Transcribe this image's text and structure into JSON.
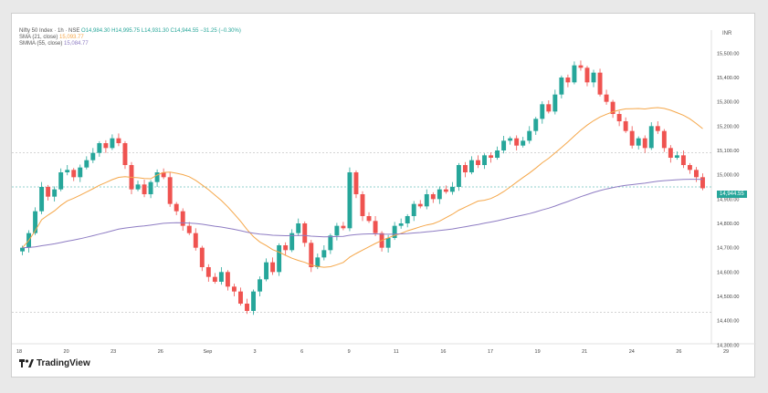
{
  "header": {
    "top_name": "",
    "corner_label": "INR"
  },
  "legend": {
    "title": "Nifty 50 Index · 1h · NSE",
    "ohlc": "O14,984.30 H14,995.75 L14,931.30 C14,944.55 −31.25 (−0.30%)",
    "sma_label": "SMA (21, close)",
    "sma_value": "15,093.77",
    "smma_label": "SMMA (55, close)",
    "smma_value": "15,084.77"
  },
  "logo": {
    "text": "TradingView"
  },
  "colors": {
    "up": "#26a69a",
    "down": "#ef5350",
    "sma": "#f5a74a",
    "smma": "#8e7cc3",
    "grid": "#eeeeee"
  },
  "chart_data": {
    "type": "candlestick",
    "title": "Nifty 50 Index · 1h · NSE",
    "xlabel": "",
    "ylabel": "",
    "ylim": [
      14350,
      15550
    ],
    "y_ticks": [
      "15,500.00",
      "15,400.00",
      "15,300.00",
      "15,200.00",
      "15,100.00",
      "15,000.00",
      "14,900.00",
      "14,800.00",
      "14,700.00",
      "14,600.00",
      "14,500.00",
      "14,400.00",
      "14,300.00"
    ],
    "x_ticks": [
      "18",
      "20",
      "23",
      "26",
      "Sep",
      "3",
      "6",
      "9",
      "11",
      "16",
      "17",
      "19",
      "21",
      "24",
      "26",
      "29"
    ],
    "current_price": "14,944.55",
    "grid": false,
    "legend_position": "top-left",
    "close": [
      14700,
      14760,
      14850,
      14950,
      14910,
      14940,
      15010,
      15020,
      14990,
      15030,
      15060,
      15090,
      15130,
      15110,
      15150,
      15130,
      15040,
      14940,
      14960,
      14920,
      14970,
      15010,
      14990,
      14880,
      14850,
      14790,
      14760,
      14700,
      14620,
      14580,
      14560,
      14600,
      14540,
      14520,
      14470,
      14440,
      14520,
      14570,
      14640,
      14600,
      14710,
      14690,
      14760,
      14800,
      14720,
      14620,
      14660,
      14690,
      14750,
      14790,
      14780,
      15010,
      14920,
      14830,
      14810,
      14760,
      14700,
      14740,
      14790,
      14800,
      14830,
      14880,
      14870,
      14920,
      14900,
      14940,
      14930,
      14950,
      15040,
      15010,
      15060,
      15040,
      15080,
      15070,
      15100,
      15140,
      15150,
      15120,
      15140,
      15180,
      15230,
      15290,
      15260,
      15330,
      15400,
      15380,
      15450,
      15440,
      15380,
      15420,
      15330,
      15300,
      15250,
      15220,
      15180,
      15120,
      15150,
      15110,
      15200,
      15180,
      15110,
      15070,
      15080,
      15040,
      15020,
      14990,
      14944.55
    ]
  }
}
